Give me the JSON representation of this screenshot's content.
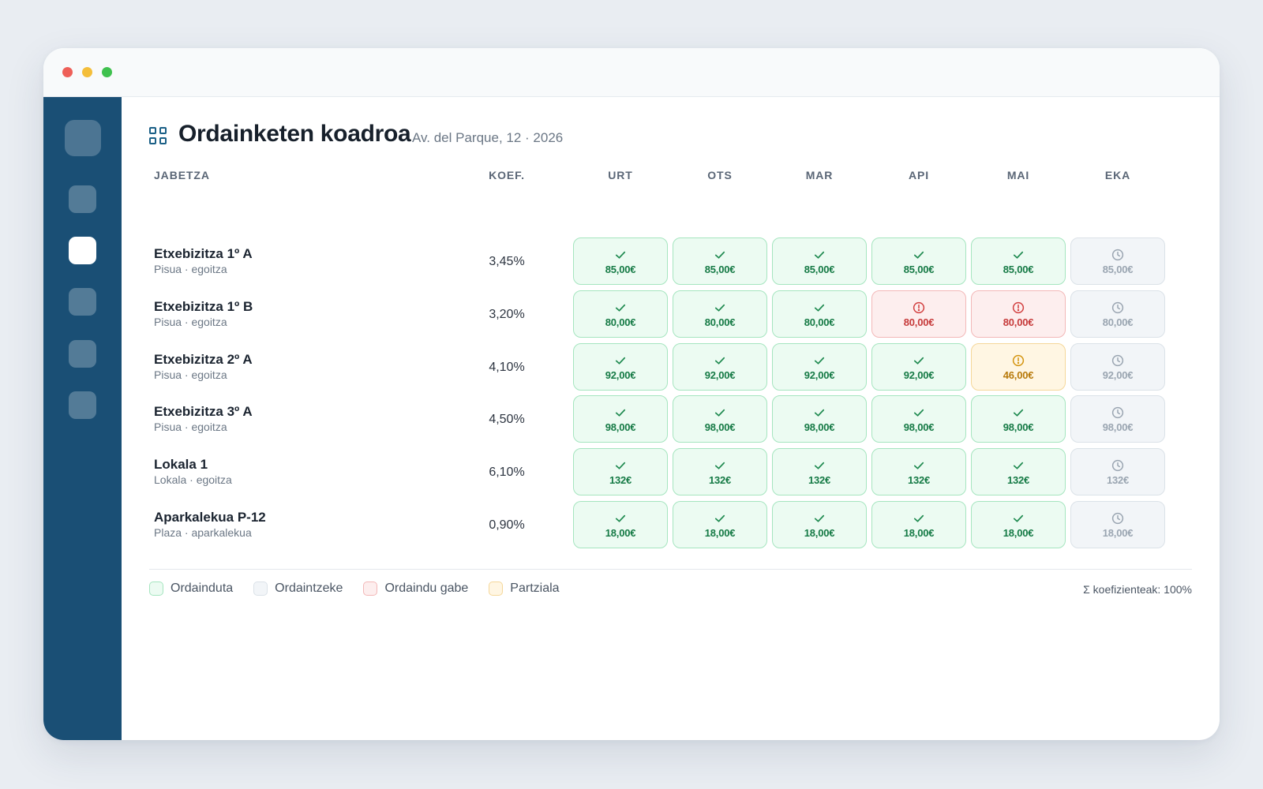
{
  "window": {
    "title": ""
  },
  "header": {
    "title": "Ordainketen koadroa",
    "subtitle": "Av. del Parque, 12 · 2026",
    "icon": "grid-icon"
  },
  "table": {
    "col_property": "JABETZA",
    "col_coef": "KOEF.",
    "months": [
      "URT",
      "OTS",
      "MAR",
      "API",
      "MAI",
      "EKA"
    ],
    "rows": [
      {
        "name": "Etxebizitza 1º A",
        "sub": "Pisua · egoitza",
        "coef": "3,45%",
        "cells": [
          {
            "status": "paid",
            "amount": "85,00€"
          },
          {
            "status": "paid",
            "amount": "85,00€"
          },
          {
            "status": "paid",
            "amount": "85,00€"
          },
          {
            "status": "paid",
            "amount": "85,00€"
          },
          {
            "status": "paid",
            "amount": "85,00€"
          },
          {
            "status": "pending",
            "amount": "85,00€"
          }
        ]
      },
      {
        "name": "Etxebizitza 1º B",
        "sub": "Pisua · egoitza",
        "coef": "3,20%",
        "cells": [
          {
            "status": "paid",
            "amount": "80,00€"
          },
          {
            "status": "paid",
            "amount": "80,00€"
          },
          {
            "status": "paid",
            "amount": "80,00€"
          },
          {
            "status": "unpaid",
            "amount": "80,00€"
          },
          {
            "status": "unpaid",
            "amount": "80,00€"
          },
          {
            "status": "pending",
            "amount": "80,00€"
          }
        ]
      },
      {
        "name": "Etxebizitza 2º A",
        "sub": "Pisua · egoitza",
        "coef": "4,10%",
        "cells": [
          {
            "status": "paid",
            "amount": "92,00€"
          },
          {
            "status": "paid",
            "amount": "92,00€"
          },
          {
            "status": "paid",
            "amount": "92,00€"
          },
          {
            "status": "paid",
            "amount": "92,00€"
          },
          {
            "status": "partial",
            "amount": "46,00€"
          },
          {
            "status": "pending",
            "amount": "92,00€"
          }
        ]
      },
      {
        "name": "Etxebizitza 3º A",
        "sub": "Pisua · egoitza",
        "coef": "4,50%",
        "cells": [
          {
            "status": "paid",
            "amount": "98,00€"
          },
          {
            "status": "paid",
            "amount": "98,00€"
          },
          {
            "status": "paid",
            "amount": "98,00€"
          },
          {
            "status": "paid",
            "amount": "98,00€"
          },
          {
            "status": "paid",
            "amount": "98,00€"
          },
          {
            "status": "pending",
            "amount": "98,00€"
          }
        ]
      },
      {
        "name": "Lokala 1",
        "sub": "Lokala · egoitza",
        "coef": "6,10%",
        "cells": [
          {
            "status": "paid",
            "amount": "132€"
          },
          {
            "status": "paid",
            "amount": "132€"
          },
          {
            "status": "paid",
            "amount": "132€"
          },
          {
            "status": "paid",
            "amount": "132€"
          },
          {
            "status": "paid",
            "amount": "132€"
          },
          {
            "status": "pending",
            "amount": "132€"
          }
        ]
      },
      {
        "name": "Aparkalekua P-12",
        "sub": "Plaza · aparkalekua",
        "coef": "0,90%",
        "cells": [
          {
            "status": "paid",
            "amount": "18,00€"
          },
          {
            "status": "paid",
            "amount": "18,00€"
          },
          {
            "status": "paid",
            "amount": "18,00€"
          },
          {
            "status": "paid",
            "amount": "18,00€"
          },
          {
            "status": "paid",
            "amount": "18,00€"
          },
          {
            "status": "pending",
            "amount": "18,00€"
          }
        ]
      }
    ]
  },
  "legend": {
    "paid": "Ordainduta",
    "pending": "Ordaintzeke",
    "unpaid": "Ordaindu gabe",
    "partial": "Partziala"
  },
  "footer": {
    "sum": "Σ koefizienteak: 100%"
  },
  "colors": {
    "sidebar": "#1a4f75",
    "paid": "#157a45",
    "unpaid": "#c63a3a",
    "partial": "#b87a0b",
    "pending": "#9aa5b1"
  },
  "icons": {
    "paid": "check-icon",
    "unpaid": "alert-circle-icon",
    "partial": "alert-circle-icon",
    "pending": "clock-icon"
  }
}
